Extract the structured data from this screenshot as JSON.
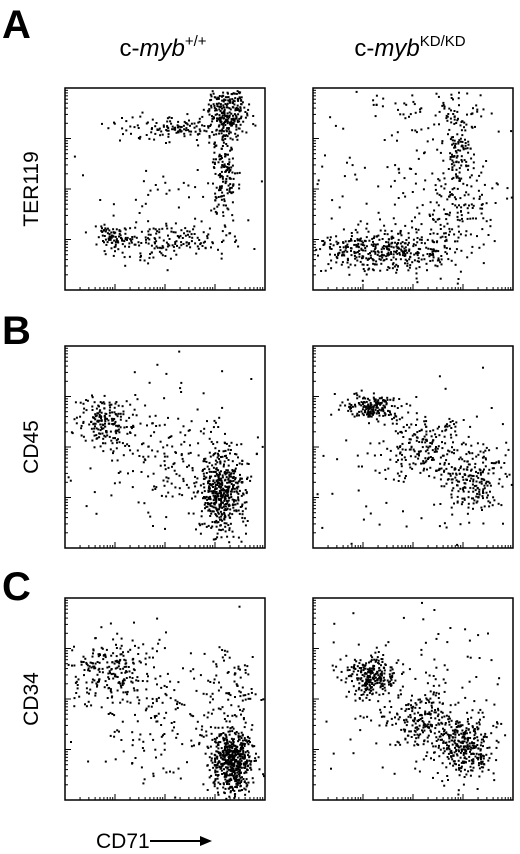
{
  "columns": [
    {
      "prefix": "c-",
      "gene": "myb",
      "genotype": "+/+"
    },
    {
      "prefix": "c-",
      "gene": "myb",
      "genotype": "KD/KD"
    }
  ],
  "panels": [
    {
      "label": "A",
      "y_label": "TER119"
    },
    {
      "label": "B",
      "y_label": "CD45"
    },
    {
      "label": "C",
      "y_label": "CD34"
    }
  ],
  "x_label": "CD71"
}
